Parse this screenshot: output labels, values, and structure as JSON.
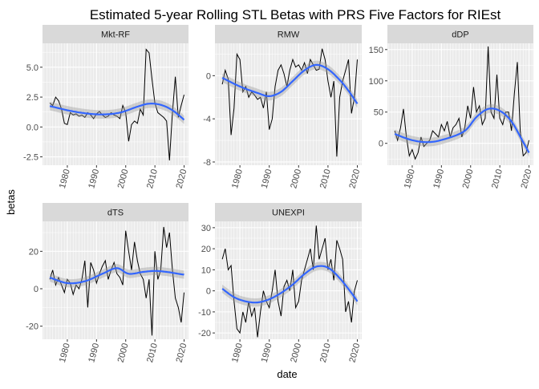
{
  "title": "Estimated 5-year Rolling STL Betas with PRS Five Factors for RIEst",
  "xlabel": "date",
  "ylabel": "betas",
  "colors": {
    "panel_bg": "#EBEBEB",
    "strip_bg": "#D9D9D9",
    "grid": "#FFFFFF",
    "raw_line": "#000000",
    "smooth_line": "#3366FF",
    "ribbon": "#999999"
  },
  "chart_data": [
    {
      "type": "line",
      "panel": "Mkt-RF",
      "xlim": [
        1971.5,
        2021.5
      ],
      "ylim": [
        -3.2,
        7.0
      ],
      "yticks": [
        -2.5,
        0.0,
        2.5,
        5.0
      ],
      "ytick_labels": [
        "-2.5",
        "0.0",
        "2.5",
        "5.0"
      ],
      "xticks": [
        1980,
        1990,
        2000,
        2010,
        2020
      ],
      "xtick_labels": [
        "1980",
        "1990",
        "2000",
        "2010",
        "2020"
      ],
      "series": [
        {
          "x": [
            1974,
            1975,
            1976,
            1977,
            1978,
            1979,
            1980,
            1981,
            1982,
            1983,
            1984,
            1985,
            1986,
            1987,
            1988,
            1989,
            1990,
            1991,
            1992,
            1993,
            1994,
            1995,
            1996,
            1997,
            1998,
            1999,
            2000,
            2001,
            2002,
            2003,
            2004,
            2005,
            2006,
            2007,
            2008,
            2009,
            2010,
            2011,
            2012,
            2013,
            2014,
            2015,
            2016,
            2017,
            2018,
            2019,
            2020
          ],
          "y": [
            2.0,
            1.8,
            2.5,
            2.2,
            1.5,
            0.3,
            0.2,
            1.2,
            1.0,
            1.1,
            0.9,
            1.0,
            0.8,
            1.2,
            1.0,
            0.7,
            1.1,
            1.3,
            1.0,
            0.8,
            0.9,
            1.2,
            1.0,
            0.9,
            0.7,
            1.8,
            1.2,
            -1.2,
            0.2,
            0.5,
            0.3,
            1.5,
            1.0,
            6.5,
            6.2,
            4.0,
            2.0,
            1.2,
            1.0,
            0.8,
            0.5,
            -2.8,
            1.2,
            4.2,
            0.8,
            1.8,
            2.7
          ]
        }
      ],
      "smooth": {
        "x": [
          1974,
          1980,
          1986,
          1992,
          1998,
          2004,
          2008,
          2012,
          2016,
          2020
        ],
        "y": [
          1.75,
          1.4,
          1.15,
          1.05,
          1.2,
          1.7,
          1.95,
          1.85,
          1.4,
          0.6
        ]
      }
    },
    {
      "type": "line",
      "panel": "RMW",
      "xlim": [
        1971.5,
        2021.5
      ],
      "ylim": [
        -8.3,
        3.0
      ],
      "yticks": [
        -8,
        -4,
        0
      ],
      "ytick_labels": [
        "-8",
        "-4",
        "0"
      ],
      "xticks": [
        1980,
        1990,
        2000,
        2010,
        2020
      ],
      "xtick_labels": [
        "1980",
        "1990",
        "2000",
        "2010",
        "2020"
      ],
      "series": [
        {
          "x": [
            1974,
            1975,
            1976,
            1977,
            1978,
            1979,
            1980,
            1981,
            1982,
            1983,
            1984,
            1985,
            1986,
            1987,
            1988,
            1989,
            1990,
            1991,
            1992,
            1993,
            1994,
            1995,
            1996,
            1997,
            1998,
            1999,
            2000,
            2001,
            2002,
            2003,
            2004,
            2005,
            2006,
            2007,
            2008,
            2009,
            2010,
            2011,
            2012,
            2013,
            2014,
            2015,
            2016,
            2017,
            2018,
            2019,
            2020
          ],
          "y": [
            -0.8,
            0.5,
            -0.3,
            -5.5,
            -3.0,
            2.0,
            1.5,
            -1.5,
            -1.0,
            -2.0,
            -1.5,
            -1.8,
            -2.2,
            -2.0,
            -3.0,
            -1.5,
            -5.0,
            -4.0,
            -1.0,
            0.5,
            1.0,
            0.2,
            -1.0,
            0.5,
            1.5,
            0.8,
            1.0,
            0.5,
            1.2,
            0.2,
            1.5,
            1.0,
            0.5,
            0.6,
            2.5,
            1.5,
            -0.5,
            -2.0,
            -0.5,
            -7.5,
            -2.0,
            -0.5,
            0.5,
            1.5,
            -3.5,
            -2.0,
            1.5
          ]
        }
      ],
      "smooth": {
        "x": [
          1974,
          1980,
          1986,
          1990,
          1994,
          1998,
          2002,
          2006,
          2010,
          2014,
          2017,
          2020
        ],
        "y": [
          -0.2,
          -1.0,
          -1.6,
          -1.9,
          -1.5,
          -0.5,
          0.5,
          1.0,
          0.6,
          -0.4,
          -1.4,
          -2.6
        ]
      }
    },
    {
      "type": "line",
      "panel": "dDP",
      "xlim": [
        1971.5,
        2021.5
      ],
      "ylim": [
        -35,
        160
      ],
      "yticks": [
        0,
        50,
        100,
        150
      ],
      "ytick_labels": [
        "0",
        "50",
        "100",
        "150"
      ],
      "xticks": [
        1980,
        1990,
        2000,
        2010,
        2020
      ],
      "xtick_labels": [
        "1980",
        "1990",
        "2000",
        "2010",
        "2020"
      ],
      "series": [
        {
          "x": [
            1974,
            1975,
            1976,
            1977,
            1978,
            1979,
            1980,
            1981,
            1982,
            1983,
            1984,
            1985,
            1986,
            1987,
            1988,
            1989,
            1990,
            1991,
            1992,
            1993,
            1994,
            1995,
            1996,
            1997,
            1998,
            1999,
            2000,
            2001,
            2002,
            2003,
            2004,
            2005,
            2006,
            2007,
            2008,
            2009,
            2010,
            2011,
            2012,
            2013,
            2014,
            2015,
            2016,
            2017,
            2018,
            2019,
            2020
          ],
          "y": [
            20,
            5,
            25,
            55,
            10,
            -20,
            -10,
            -25,
            -15,
            10,
            -5,
            0,
            5,
            20,
            15,
            10,
            30,
            20,
            35,
            10,
            25,
            30,
            40,
            10,
            25,
            60,
            40,
            90,
            50,
            60,
            30,
            40,
            155,
            50,
            40,
            110,
            40,
            30,
            50,
            50,
            20,
            80,
            130,
            20,
            -20,
            -15,
            5
          ]
        }
      ],
      "smooth": {
        "x": [
          1974,
          1980,
          1986,
          1992,
          1998,
          2002,
          2006,
          2010,
          2014,
          2018,
          2020
        ],
        "y": [
          15,
          5,
          2,
          8,
          20,
          42,
          55,
          52,
          35,
          2,
          -15
        ]
      }
    },
    {
      "type": "line",
      "panel": "dTS",
      "xlim": [
        1971.5,
        2021.5
      ],
      "ylim": [
        -27,
        36
      ],
      "yticks": [
        -20,
        0,
        20
      ],
      "ytick_labels": [
        "-20",
        "0",
        "20"
      ],
      "xticks": [
        1980,
        1990,
        2000,
        2010,
        2020
      ],
      "xtick_labels": [
        "1980",
        "1990",
        "2000",
        "2010",
        "2020"
      ],
      "series": [
        {
          "x": [
            1974,
            1975,
            1976,
            1977,
            1978,
            1979,
            1980,
            1981,
            1982,
            1983,
            1984,
            1985,
            1986,
            1987,
            1988,
            1989,
            1990,
            1991,
            1992,
            1993,
            1994,
            1995,
            1996,
            1997,
            1998,
            1999,
            2000,
            2001,
            2002,
            2003,
            2004,
            2005,
            2006,
            2007,
            2008,
            2009,
            2010,
            2011,
            2012,
            2013,
            2014,
            2015,
            2016,
            2017,
            2018,
            2019,
            2020
          ],
          "y": [
            5,
            10,
            2,
            6,
            2,
            -2,
            5,
            3,
            -3,
            2,
            0,
            5,
            15,
            -10,
            14,
            10,
            3,
            8,
            12,
            15,
            5,
            10,
            14,
            8,
            6,
            2,
            31,
            20,
            10,
            25,
            15,
            8,
            5,
            -5,
            5,
            -25,
            20,
            5,
            10,
            33,
            22,
            30,
            10,
            -5,
            -10,
            -18,
            -2
          ]
        }
      ],
      "smooth": {
        "x": [
          1974,
          1980,
          1986,
          1992,
          1997,
          2001,
          2006,
          2010,
          2014,
          2018,
          2020
        ],
        "y": [
          6,
          3,
          4,
          8,
          11,
          8,
          9,
          9.5,
          9,
          8,
          7.5
        ]
      }
    },
    {
      "type": "line",
      "panel": "UNEXPI",
      "xlim": [
        1971.5,
        2021.5
      ],
      "ylim": [
        -23,
        33
      ],
      "yticks": [
        -20,
        -10,
        0,
        10,
        20,
        30
      ],
      "ytick_labels": [
        "-20",
        "-10",
        "0",
        "10",
        "20",
        "30"
      ],
      "xticks": [
        1980,
        1990,
        2000,
        2010,
        2020
      ],
      "xtick_labels": [
        "1980",
        "1990",
        "2000",
        "2010",
        "2020"
      ],
      "series": [
        {
          "x": [
            1974,
            1975,
            1976,
            1977,
            1978,
            1979,
            1980,
            1981,
            1982,
            1983,
            1984,
            1985,
            1986,
            1987,
            1988,
            1989,
            1990,
            1991,
            1992,
            1993,
            1994,
            1995,
            1996,
            1997,
            1998,
            1999,
            2000,
            2001,
            2002,
            2003,
            2004,
            2005,
            2006,
            2007,
            2008,
            2009,
            2010,
            2011,
            2012,
            2013,
            2014,
            2015,
            2016,
            2017,
            2018,
            2019,
            2020
          ],
          "y": [
            15,
            20,
            10,
            12,
            -5,
            -18,
            -20,
            -10,
            -15,
            -5,
            -12,
            -8,
            -22,
            -10,
            0,
            -5,
            -8,
            0,
            10,
            -5,
            -12,
            2,
            5,
            0,
            10,
            -8,
            -5,
            5,
            10,
            15,
            20,
            10,
            31,
            15,
            20,
            25,
            10,
            15,
            5,
            24,
            20,
            15,
            -10,
            -5,
            -15,
            0,
            5
          ]
        }
      ],
      "smooth": {
        "x": [
          1974,
          1978,
          1982,
          1986,
          1990,
          1994,
          1998,
          2002,
          2006,
          2010,
          2014,
          2018,
          2020
        ],
        "y": [
          1,
          -3,
          -5,
          -5.5,
          -4,
          -1,
          3,
          8,
          11.5,
          11,
          6,
          -1,
          -5
        ]
      }
    }
  ]
}
